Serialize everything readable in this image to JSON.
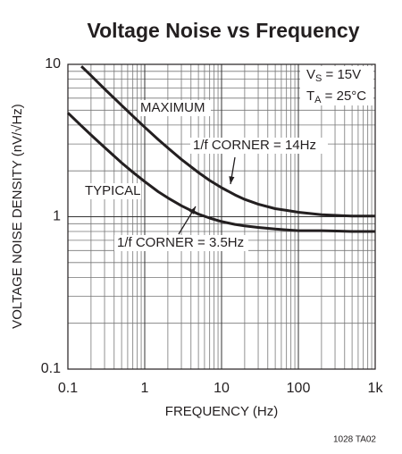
{
  "chart_data": {
    "type": "line",
    "title": "Voltage Noise vs Frequency",
    "x_label": "FREQUENCY (Hz)",
    "y_label": "VOLTAGE NOISE DENSITY (nV/√Hz)",
    "log_x": true,
    "log_y": true,
    "grid": true,
    "x": [
      0.1,
      0.15,
      0.2,
      0.3,
      0.5,
      0.7,
      1,
      1.5,
      2,
      3,
      5,
      7,
      10,
      15,
      20,
      30,
      50,
      70,
      100,
      200,
      500,
      1000
    ],
    "series": [
      {
        "name": "MAXIMUM",
        "color": "#231f20",
        "values": [
          null,
          9.71,
          8.43,
          6.9,
          5.39,
          4.58,
          3.87,
          3.21,
          2.83,
          2.38,
          1.95,
          1.73,
          1.55,
          1.39,
          1.3,
          1.21,
          1.13,
          1.1,
          1.07,
          1.03,
          1.01,
          1.01
        ]
      },
      {
        "name": "TYPICAL",
        "color": "#231f20",
        "values": [
          4.8,
          3.95,
          3.44,
          2.85,
          2.26,
          1.96,
          1.7,
          1.46,
          1.33,
          1.18,
          1.04,
          0.98,
          0.93,
          0.89,
          0.87,
          0.85,
          0.83,
          0.82,
          0.81,
          0.81,
          0.8,
          0.8
        ]
      }
    ],
    "annotations": [
      "1/f CORNER = 14Hz",
      "1/f CORNER = 3.5Hz"
    ],
    "conditions": [
      [
        "V",
        "S",
        " = 15V"
      ],
      [
        "T",
        "A",
        " = 25°C"
      ]
    ],
    "footnote": "1028 TA02",
    "xlim": [
      0.1,
      1000
    ],
    "xticks": [
      0.1,
      1,
      10,
      100,
      {
        "value": 1000,
        "label": "1k"
      }
    ],
    "xminorticks": [
      0.2,
      0.3,
      0.4,
      0.5,
      0.6,
      0.7,
      0.8,
      0.9,
      2,
      3,
      4,
      5,
      6,
      7,
      8,
      9,
      20,
      30,
      40,
      50,
      60,
      70,
      80,
      90,
      200,
      300,
      400,
      500,
      600,
      700,
      800,
      900
    ],
    "ylim": [
      0.1,
      10
    ],
    "yticks": [
      0.1,
      1,
      10
    ],
    "yminorticks": [
      0.2,
      0.3,
      0.4,
      0.5,
      0.6,
      0.7,
      0.8,
      0.9,
      2,
      3,
      4,
      5,
      6,
      7,
      8,
      9
    ]
  }
}
